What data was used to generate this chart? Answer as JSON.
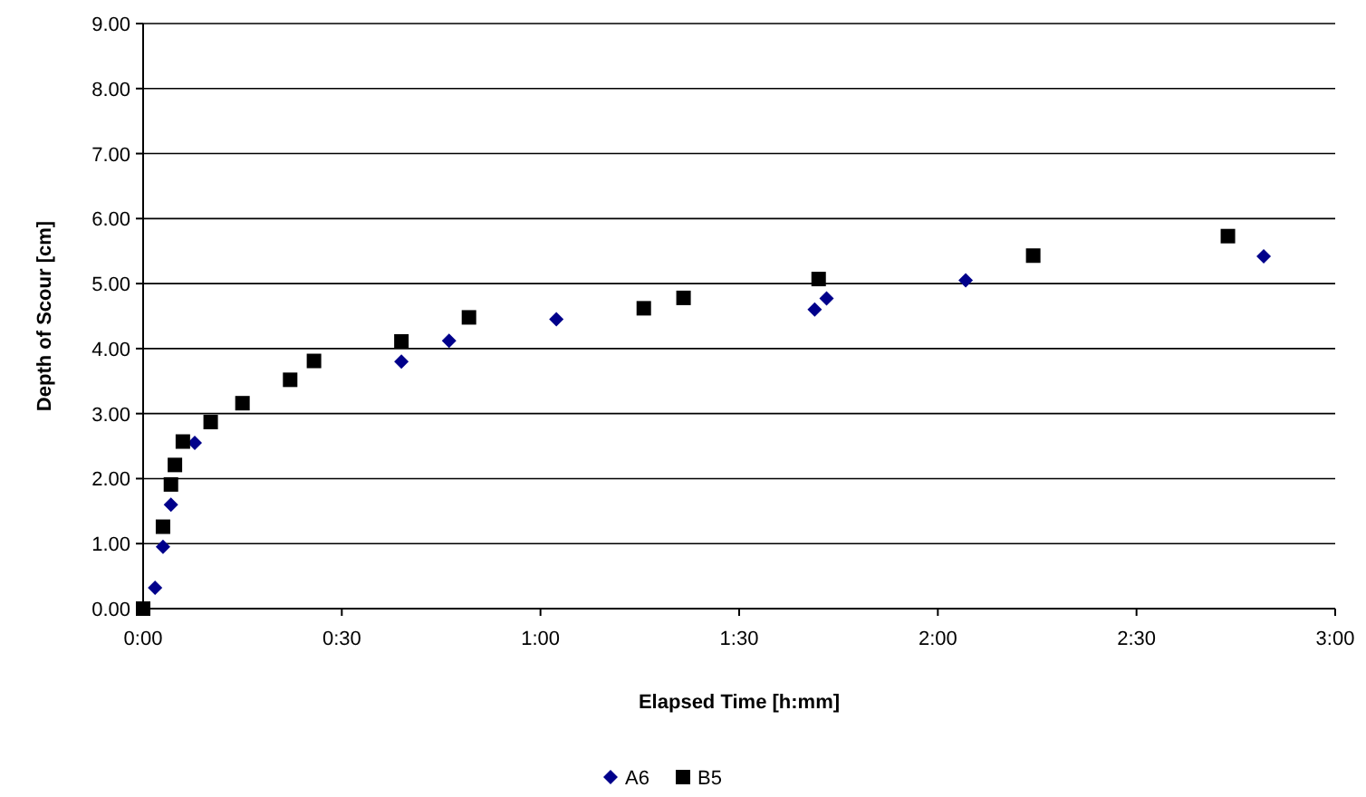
{
  "chart_data": {
    "type": "scatter",
    "xlabel": "Elapsed Time [h:mm]",
    "ylabel": "Depth of Scour [cm]",
    "xlim": [
      0,
      3
    ],
    "ylim": [
      0,
      9
    ],
    "xticks": [
      {
        "value": 0,
        "label": "0:00"
      },
      {
        "value": 0.5,
        "label": "0:30"
      },
      {
        "value": 1,
        "label": "1:00"
      },
      {
        "value": 1.5,
        "label": "1:30"
      },
      {
        "value": 2,
        "label": "2:00"
      },
      {
        "value": 2.5,
        "label": "2:30"
      },
      {
        "value": 3,
        "label": "3:00"
      }
    ],
    "yticks": [
      {
        "value": 0,
        "label": "0.00"
      },
      {
        "value": 1,
        "label": "1.00"
      },
      {
        "value": 2,
        "label": "2.00"
      },
      {
        "value": 3,
        "label": "3.00"
      },
      {
        "value": 4,
        "label": "4.00"
      },
      {
        "value": 5,
        "label": "5.00"
      },
      {
        "value": 6,
        "label": "6.00"
      },
      {
        "value": 7,
        "label": "7.00"
      },
      {
        "value": 8,
        "label": "8.00"
      },
      {
        "value": 9,
        "label": "9.00"
      }
    ],
    "grid": "y",
    "legend": "bottom",
    "series": [
      {
        "name": "A6",
        "color": "#00008b",
        "marker": "diamond",
        "x": [
          0.03,
          0.05,
          0.07,
          0.13,
          0.65,
          0.77,
          1.04,
          1.69,
          1.72,
          2.07,
          2.82
        ],
        "values": [
          0.32,
          0.95,
          1.6,
          2.55,
          3.8,
          4.12,
          4.45,
          4.6,
          4.77,
          5.05,
          5.42
        ]
      },
      {
        "name": "B5",
        "color": "#000000",
        "marker": "square",
        "x": [
          0,
          0.05,
          0.07,
          0.08,
          0.1,
          0.17,
          0.25,
          0.37,
          0.43,
          0.65,
          0.82,
          1.26,
          1.36,
          1.7,
          2.24,
          2.73
        ],
        "values": [
          0,
          1.26,
          1.91,
          2.21,
          2.57,
          2.87,
          3.16,
          3.52,
          3.81,
          4.11,
          4.48,
          4.62,
          4.78,
          5.07,
          5.43,
          5.73
        ]
      }
    ]
  }
}
